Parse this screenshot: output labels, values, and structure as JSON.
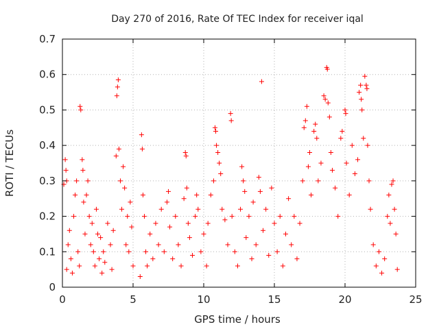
{
  "chart_data": {
    "type": "scatter",
    "title": "Day 270 of 2016, Rate Of TEC Index for receiver iqal",
    "xlabel": "GPS time / hours",
    "ylabel": "ROTI / TECUs",
    "xlim": [
      0,
      25
    ],
    "ylim": [
      0,
      0.7
    ],
    "xticks": [
      0,
      5,
      10,
      15,
      20,
      25
    ],
    "yticks": [
      0,
      0.1,
      0.2,
      0.3,
      0.4,
      0.5,
      0.6,
      0.7
    ],
    "xtick_labels": [
      "0",
      "5",
      "10",
      "15",
      "20",
      "25"
    ],
    "ytick_labels": [
      "0",
      "0.1",
      "0.2",
      "0.3",
      "0.4",
      "0.5",
      "0.6",
      "0.7"
    ],
    "grid": true,
    "marker": "+",
    "color": "#ff0000",
    "series": [
      {
        "name": "ROTI",
        "points": [
          [
            0.1,
            0.29
          ],
          [
            0.2,
            0.36
          ],
          [
            0.25,
            0.33
          ],
          [
            0.3,
            0.3
          ],
          [
            0.3,
            0.05
          ],
          [
            0.4,
            0.12
          ],
          [
            0.5,
            0.16
          ],
          [
            0.6,
            0.08
          ],
          [
            0.7,
            0.04
          ],
          [
            0.8,
            0.2
          ],
          [
            0.9,
            0.26
          ],
          [
            1.0,
            0.3
          ],
          [
            1.1,
            0.1
          ],
          [
            1.2,
            0.06
          ],
          [
            1.25,
            0.51
          ],
          [
            1.3,
            0.5
          ],
          [
            1.4,
            0.36
          ],
          [
            1.45,
            0.33
          ],
          [
            1.5,
            0.24
          ],
          [
            1.6,
            0.15
          ],
          [
            1.7,
            0.26
          ],
          [
            1.8,
            0.3
          ],
          [
            1.9,
            0.2
          ],
          [
            2.0,
            0.12
          ],
          [
            2.1,
            0.18
          ],
          [
            2.2,
            0.1
          ],
          [
            2.3,
            0.06
          ],
          [
            2.4,
            0.22
          ],
          [
            2.5,
            0.15
          ],
          [
            2.6,
            0.08
          ],
          [
            2.7,
            0.14
          ],
          [
            2.8,
            0.04
          ],
          [
            2.9,
            0.1
          ],
          [
            3.0,
            0.07
          ],
          [
            3.2,
            0.18
          ],
          [
            3.4,
            0.12
          ],
          [
            3.5,
            0.05
          ],
          [
            3.6,
            0.16
          ],
          [
            3.8,
            0.37
          ],
          [
            3.85,
            0.54
          ],
          [
            3.9,
            0.565
          ],
          [
            3.95,
            0.585
          ],
          [
            4.0,
            0.39
          ],
          [
            4.1,
            0.3
          ],
          [
            4.2,
            0.22
          ],
          [
            4.3,
            0.34
          ],
          [
            4.4,
            0.28
          ],
          [
            4.5,
            0.12
          ],
          [
            4.6,
            0.2
          ],
          [
            4.7,
            0.1
          ],
          [
            4.8,
            0.24
          ],
          [
            4.9,
            0.17
          ],
          [
            5.0,
            0.06
          ],
          [
            5.5,
            0.03
          ],
          [
            5.6,
            0.43
          ],
          [
            5.65,
            0.39
          ],
          [
            5.7,
            0.26
          ],
          [
            5.8,
            0.2
          ],
          [
            5.9,
            0.1
          ],
          [
            6.0,
            0.06
          ],
          [
            6.2,
            0.15
          ],
          [
            6.4,
            0.08
          ],
          [
            6.6,
            0.18
          ],
          [
            6.8,
            0.12
          ],
          [
            7.0,
            0.22
          ],
          [
            7.2,
            0.1
          ],
          [
            7.4,
            0.24
          ],
          [
            7.5,
            0.27
          ],
          [
            7.6,
            0.17
          ],
          [
            7.8,
            0.08
          ],
          [
            8.0,
            0.2
          ],
          [
            8.2,
            0.12
          ],
          [
            8.4,
            0.06
          ],
          [
            8.6,
            0.25
          ],
          [
            8.7,
            0.38
          ],
          [
            8.75,
            0.37
          ],
          [
            8.8,
            0.28
          ],
          [
            8.9,
            0.18
          ],
          [
            9.0,
            0.14
          ],
          [
            9.2,
            0.09
          ],
          [
            9.4,
            0.2
          ],
          [
            9.5,
            0.26
          ],
          [
            9.6,
            0.22
          ],
          [
            9.8,
            0.1
          ],
          [
            10.0,
            0.15
          ],
          [
            10.2,
            0.06
          ],
          [
            10.3,
            0.18
          ],
          [
            10.5,
            0.26
          ],
          [
            10.7,
            0.3
          ],
          [
            10.8,
            0.45
          ],
          [
            10.85,
            0.44
          ],
          [
            10.9,
            0.4
          ],
          [
            11.0,
            0.38
          ],
          [
            11.1,
            0.35
          ],
          [
            11.2,
            0.32
          ],
          [
            11.3,
            0.22
          ],
          [
            11.5,
            0.19
          ],
          [
            11.7,
            0.12
          ],
          [
            11.9,
            0.49
          ],
          [
            11.95,
            0.47
          ],
          [
            12.0,
            0.2
          ],
          [
            12.2,
            0.1
          ],
          [
            12.4,
            0.06
          ],
          [
            12.6,
            0.22
          ],
          [
            12.7,
            0.34
          ],
          [
            12.8,
            0.3
          ],
          [
            12.9,
            0.27
          ],
          [
            13.0,
            0.14
          ],
          [
            13.2,
            0.2
          ],
          [
            13.4,
            0.08
          ],
          [
            13.5,
            0.24
          ],
          [
            13.7,
            0.12
          ],
          [
            13.9,
            0.31
          ],
          [
            14.0,
            0.27
          ],
          [
            14.1,
            0.58
          ],
          [
            14.2,
            0.16
          ],
          [
            14.4,
            0.22
          ],
          [
            14.6,
            0.09
          ],
          [
            14.8,
            0.28
          ],
          [
            15.0,
            0.18
          ],
          [
            15.2,
            0.1
          ],
          [
            15.4,
            0.2
          ],
          [
            15.6,
            0.06
          ],
          [
            15.8,
            0.15
          ],
          [
            16.0,
            0.25
          ],
          [
            16.2,
            0.12
          ],
          [
            16.4,
            0.2
          ],
          [
            16.6,
            0.08
          ],
          [
            16.8,
            0.18
          ],
          [
            17.0,
            0.3
          ],
          [
            17.1,
            0.45
          ],
          [
            17.2,
            0.47
          ],
          [
            17.3,
            0.51
          ],
          [
            17.4,
            0.34
          ],
          [
            17.5,
            0.38
          ],
          [
            17.6,
            0.26
          ],
          [
            17.8,
            0.44
          ],
          [
            17.9,
            0.46
          ],
          [
            18.0,
            0.42
          ],
          [
            18.1,
            0.3
          ],
          [
            18.3,
            0.35
          ],
          [
            18.5,
            0.54
          ],
          [
            18.6,
            0.53
          ],
          [
            18.7,
            0.62
          ],
          [
            18.75,
            0.615
          ],
          [
            18.8,
            0.52
          ],
          [
            18.9,
            0.48
          ],
          [
            19.0,
            0.38
          ],
          [
            19.1,
            0.33
          ],
          [
            19.3,
            0.28
          ],
          [
            19.5,
            0.2
          ],
          [
            19.7,
            0.42
          ],
          [
            19.8,
            0.44
          ],
          [
            20.0,
            0.5
          ],
          [
            20.05,
            0.49
          ],
          [
            20.1,
            0.35
          ],
          [
            20.3,
            0.26
          ],
          [
            20.5,
            0.4
          ],
          [
            20.7,
            0.32
          ],
          [
            20.9,
            0.36
          ],
          [
            21.0,
            0.55
          ],
          [
            21.1,
            0.57
          ],
          [
            21.15,
            0.53
          ],
          [
            21.2,
            0.5
          ],
          [
            21.3,
            0.42
          ],
          [
            21.4,
            0.595
          ],
          [
            21.5,
            0.57
          ],
          [
            21.55,
            0.56
          ],
          [
            21.6,
            0.4
          ],
          [
            21.7,
            0.3
          ],
          [
            21.8,
            0.22
          ],
          [
            22.0,
            0.12
          ],
          [
            22.2,
            0.06
          ],
          [
            22.4,
            0.1
          ],
          [
            22.6,
            0.04
          ],
          [
            22.8,
            0.08
          ],
          [
            23.0,
            0.2
          ],
          [
            23.1,
            0.26
          ],
          [
            23.2,
            0.18
          ],
          [
            23.3,
            0.29
          ],
          [
            23.4,
            0.3
          ],
          [
            23.5,
            0.22
          ],
          [
            23.6,
            0.15
          ],
          [
            23.7,
            0.05
          ]
        ]
      }
    ]
  }
}
